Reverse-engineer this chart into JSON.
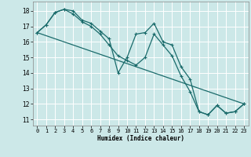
{
  "title": "",
  "xlabel": "Humidex (Indice chaleur)",
  "background_color": "#cce8e8",
  "grid_color": "#ffffff",
  "line_color": "#1a6b6b",
  "xlim": [
    -0.5,
    23.5
  ],
  "ylim": [
    10.6,
    18.6
  ],
  "xticks": [
    0,
    1,
    2,
    3,
    4,
    5,
    6,
    7,
    8,
    9,
    10,
    11,
    12,
    13,
    14,
    15,
    16,
    17,
    18,
    19,
    20,
    21,
    22,
    23
  ],
  "yticks": [
    11,
    12,
    13,
    14,
    15,
    16,
    17,
    18
  ],
  "line1_x": [
    0,
    1,
    2,
    3,
    4,
    5,
    6,
    7,
    8,
    9,
    10,
    11,
    12,
    13,
    14,
    15,
    16,
    17,
    18,
    19,
    20,
    21,
    22,
    23
  ],
  "line1_y": [
    16.6,
    17.1,
    17.9,
    18.1,
    17.8,
    17.3,
    17.0,
    16.5,
    15.8,
    15.1,
    14.8,
    14.5,
    15.0,
    16.5,
    15.8,
    15.1,
    13.8,
    12.8,
    11.5,
    11.3,
    11.9,
    11.4,
    11.5,
    12.0
  ],
  "line2_x": [
    0,
    1,
    2,
    3,
    4,
    5,
    6,
    7,
    8,
    9,
    10,
    11,
    12,
    13,
    14,
    15,
    16,
    17,
    18,
    19,
    20,
    21,
    22,
    23
  ],
  "line2_y": [
    16.6,
    17.1,
    17.9,
    18.1,
    18.0,
    17.4,
    17.2,
    16.7,
    16.2,
    14.0,
    15.0,
    16.5,
    16.6,
    17.2,
    16.0,
    15.8,
    14.4,
    13.6,
    11.5,
    11.3,
    11.9,
    11.4,
    11.5,
    12.0
  ],
  "line3_x": [
    0,
    23
  ],
  "line3_y": [
    16.6,
    12.0
  ],
  "linewidth": 0.9,
  "marker": "+",
  "markersize": 3.5,
  "xlabel_fontsize": 5.5,
  "tick_labelsize": 5
}
